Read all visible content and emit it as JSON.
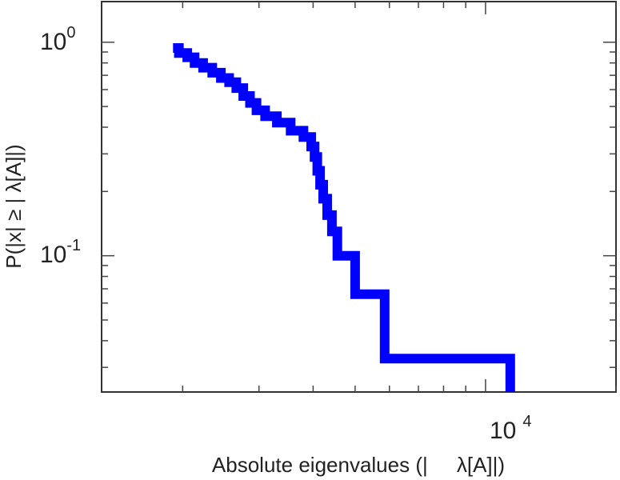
{
  "chart_data": {
    "type": "line",
    "title": "",
    "xlabel": "Absolute eigenvalues (|     λ[A]|)",
    "ylabel": "P(|x| ≥ | λ[A]|)",
    "x_scale": "log",
    "y_scale": "log",
    "xlim": [
      1300,
      20000
    ],
    "ylim": [
      0.023,
      1.55
    ],
    "grid": false,
    "x_ticks": [
      {
        "base": "10",
        "exp": "4",
        "value": 10000
      }
    ],
    "y_ticks": [
      {
        "base": "10",
        "exp": "0",
        "value": 1
      },
      {
        "base": "10",
        "exp": "-1",
        "value": 0.1
      }
    ],
    "series_color": "#0000ff",
    "series": [
      {
        "style": "step",
        "points": [
          [
            1900,
            0.94
          ],
          [
            1960,
            0.89
          ],
          [
            2050,
            0.85
          ],
          [
            2130,
            0.8
          ],
          [
            2230,
            0.76
          ],
          [
            2340,
            0.72
          ],
          [
            2450,
            0.68
          ],
          [
            2560,
            0.65
          ],
          [
            2660,
            0.61
          ],
          [
            2760,
            0.56
          ],
          [
            2860,
            0.52
          ],
          [
            2960,
            0.48
          ],
          [
            3100,
            0.45
          ],
          [
            3300,
            0.42
          ],
          [
            3550,
            0.385
          ],
          [
            3800,
            0.36
          ],
          [
            3960,
            0.325
          ],
          [
            4030,
            0.29
          ],
          [
            4090,
            0.25
          ],
          [
            4150,
            0.215
          ],
          [
            4220,
            0.185
          ],
          [
            4310,
            0.155
          ],
          [
            4420,
            0.13
          ],
          [
            4550,
            0.1
          ],
          [
            5000,
            0.066
          ],
          [
            5850,
            0.033
          ],
          [
            11400,
            0.023
          ]
        ]
      }
    ]
  }
}
